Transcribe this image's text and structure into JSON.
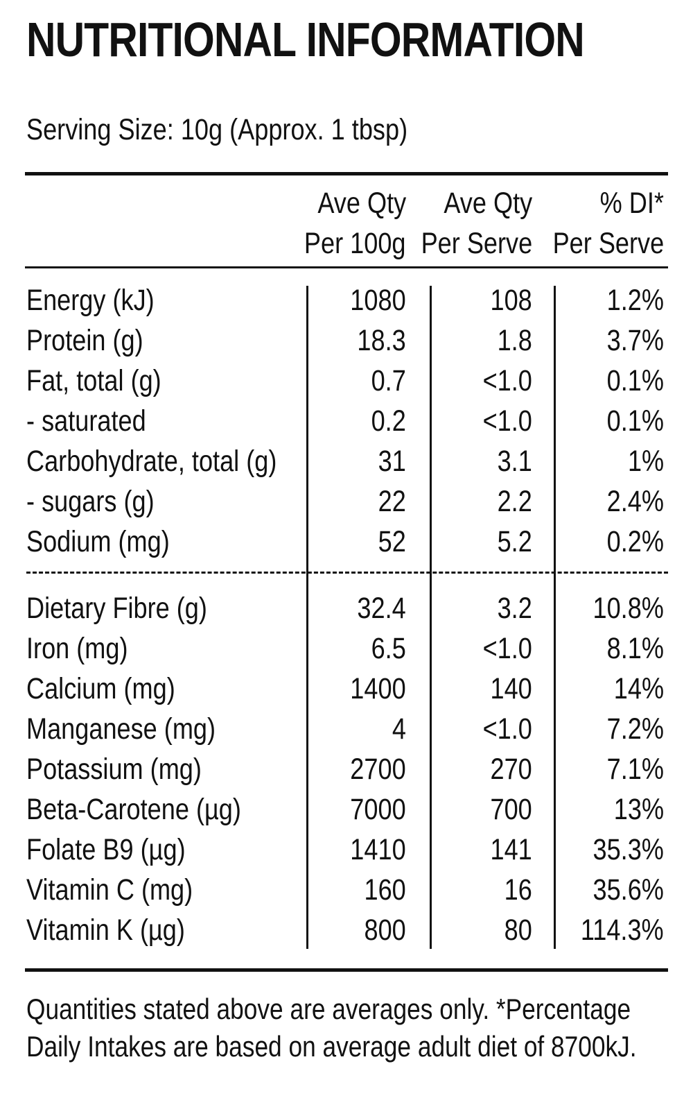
{
  "title": "NUTRITIONAL INFORMATION",
  "serving_size": "Serving Size: 10g (Approx. 1 tbsp)",
  "columns": [
    {
      "line1": "Ave Qty",
      "line2": "Per 100g"
    },
    {
      "line1": "Ave Qty",
      "line2": "Per Serve"
    },
    {
      "line1": "% DI*",
      "line2": "Per Serve"
    }
  ],
  "section1": [
    {
      "name": "Energy (kJ)",
      "per100g": "1080",
      "perServe": "108",
      "di": "1.2%"
    },
    {
      "name": "Protein (g)",
      "per100g": "18.3",
      "perServe": "1.8",
      "di": "3.7%"
    },
    {
      "name": "Fat, total (g)",
      "per100g": "0.7",
      "perServe": "<1.0",
      "di": "0.1%"
    },
    {
      "name": "- saturated",
      "per100g": "0.2",
      "perServe": "<1.0",
      "di": "0.1%"
    },
    {
      "name": "Carbohydrate, total (g)",
      "per100g": "31",
      "perServe": "3.1",
      "di": "1%"
    },
    {
      "name": "- sugars (g)",
      "per100g": "22",
      "perServe": "2.2",
      "di": "2.4%"
    },
    {
      "name": "Sodium (mg)",
      "per100g": "52",
      "perServe": "5.2",
      "di": "0.2%"
    }
  ],
  "section2": [
    {
      "name": "Dietary Fibre (g)",
      "per100g": "32.4",
      "perServe": "3.2",
      "di": "10.8%"
    },
    {
      "name": "Iron (mg)",
      "per100g": "6.5",
      "perServe": "<1.0",
      "di": "8.1%"
    },
    {
      "name": "Calcium (mg)",
      "per100g": "1400",
      "perServe": "140",
      "di": "14%"
    },
    {
      "name": "Manganese (mg)",
      "per100g": "4",
      "perServe": "<1.0",
      "di": "7.2%"
    },
    {
      "name": "Potassium (mg)",
      "per100g": "2700",
      "perServe": "270",
      "di": "7.1%"
    },
    {
      "name": "Beta-Carotene (µg)",
      "per100g": "7000",
      "perServe": "700",
      "di": "13%"
    },
    {
      "name": "Folate B9 (µg)",
      "per100g": "1410",
      "perServe": "141",
      "di": "35.3%"
    },
    {
      "name": "Vitamin C (mg)",
      "per100g": "160",
      "perServe": "16",
      "di": "35.6%"
    },
    {
      "name": "Vitamin K (µg)",
      "per100g": "800",
      "perServe": "80",
      "di": "114.3%"
    }
  ],
  "footnote": {
    "line1": "Quantities stated above are averages only. *Percentage",
    "line2": "Daily Intakes are based on average adult diet of 8700kJ."
  }
}
